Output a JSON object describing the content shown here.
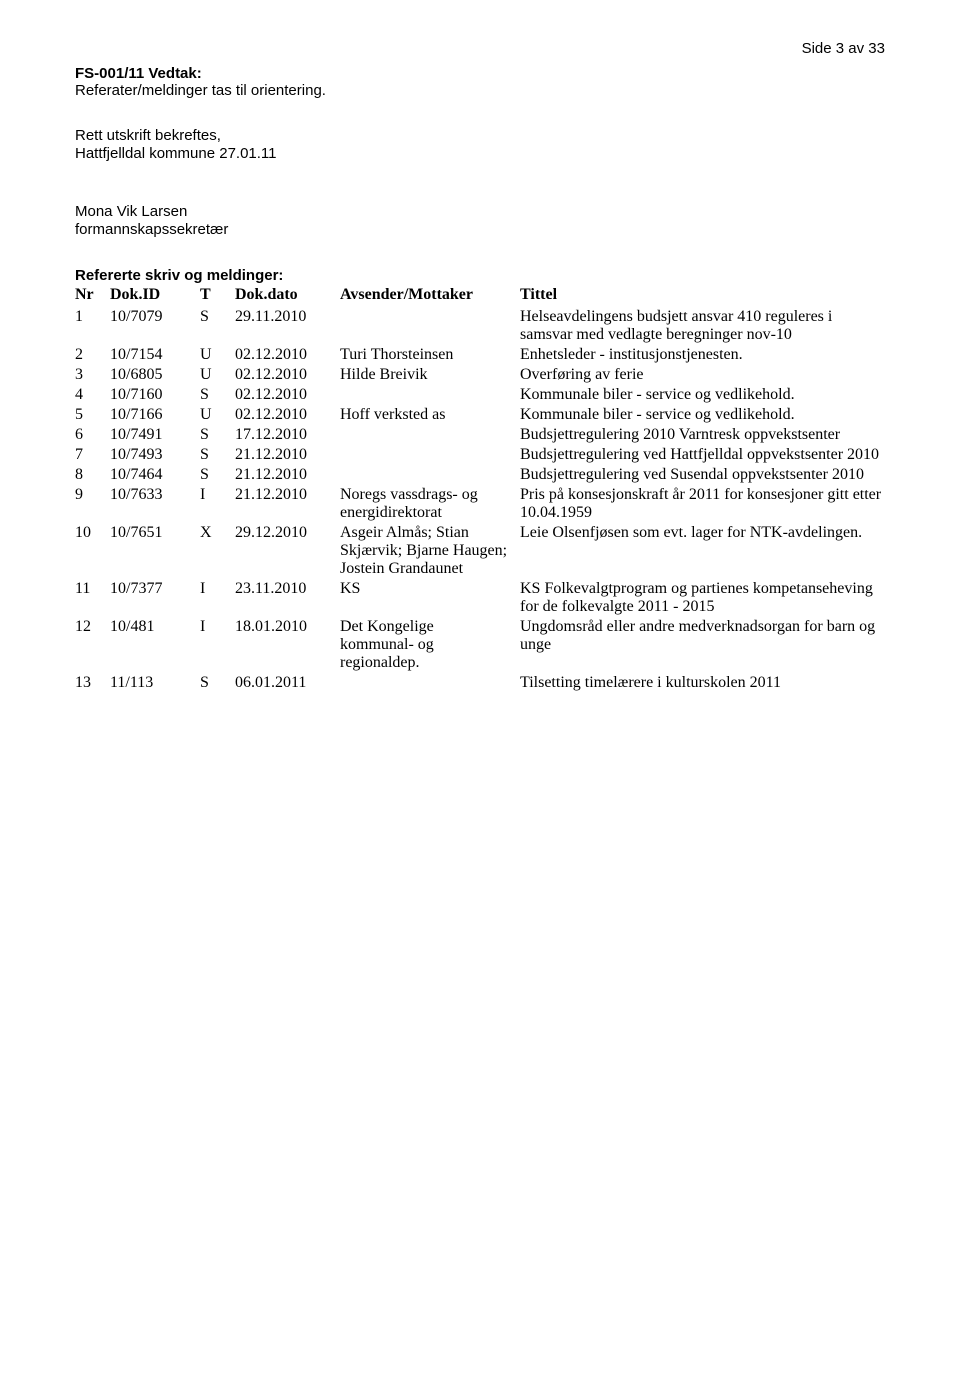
{
  "page_number": "Side 3 av 33",
  "vedtak": {
    "heading": "FS-001/11 Vedtak:",
    "text": "Referater/meldinger tas til orientering."
  },
  "utskrift": {
    "line1": "Rett utskrift bekreftes,",
    "line2": "Hattfjelldal kommune 27.01.11"
  },
  "signatur": {
    "name": "Mona Vik Larsen",
    "title": "formannskapssekretær"
  },
  "refererte_heading": "Refererte skriv og meldinger:",
  "table": {
    "headers": {
      "nr": "Nr",
      "id": "Dok.ID",
      "t": "T",
      "date": "Dok.dato",
      "sender": "Avsender/Mottaker",
      "title": "Tittel"
    },
    "rows": [
      {
        "nr": "1",
        "id": "10/7079",
        "t": "S",
        "date": "29.11.2010",
        "sender": "",
        "title": "Helseavdelingens budsjett ansvar 410 reguleres i samsvar med vedlagte beregninger nov-10"
      },
      {
        "nr": "2",
        "id": "10/7154",
        "t": "U",
        "date": "02.12.2010",
        "sender": "Turi Thorsteinsen",
        "title": "Enhetsleder - institusjonstjenesten."
      },
      {
        "nr": "3",
        "id": "10/6805",
        "t": "U",
        "date": "02.12.2010",
        "sender": "Hilde Breivik",
        "title": "Overføring av ferie"
      },
      {
        "nr": "4",
        "id": "10/7160",
        "t": "S",
        "date": "02.12.2010",
        "sender": "",
        "title": "Kommunale biler - service og vedlikehold."
      },
      {
        "nr": "5",
        "id": "10/7166",
        "t": "U",
        "date": "02.12.2010",
        "sender": "Hoff verksted as",
        "title": "Kommunale biler - service og vedlikehold."
      },
      {
        "nr": "6",
        "id": "10/7491",
        "t": "S",
        "date": "17.12.2010",
        "sender": "",
        "title": "Budsjettregulering 2010 Varntresk oppvekstsenter"
      },
      {
        "nr": "7",
        "id": "10/7493",
        "t": "S",
        "date": "21.12.2010",
        "sender": "",
        "title": "Budsjettregulering ved Hattfjelldal oppvekstsenter 2010"
      },
      {
        "nr": "8",
        "id": "10/7464",
        "t": "S",
        "date": "21.12.2010",
        "sender": "",
        "title": "Budsjettregulering ved Susendal oppvekstsenter 2010"
      },
      {
        "nr": "9",
        "id": "10/7633",
        "t": "I",
        "date": "21.12.2010",
        "sender": "Noregs vassdrags- og energidirektorat",
        "title": "Pris på konsesjonskraft år 2011 for konsesjoner gitt etter 10.04.1959"
      },
      {
        "nr": "10",
        "id": "10/7651",
        "t": "X",
        "date": "29.12.2010",
        "sender": "Asgeir Almås; Stian Skjærvik; Bjarne Haugen; Jostein Grandaunet",
        "title": "Leie Olsenfjøsen som evt. lager for NTK-avdelingen."
      },
      {
        "nr": "11",
        "id": "10/7377",
        "t": "I",
        "date": "23.11.2010",
        "sender": "KS",
        "title": "KS Folkevalgtprogram og partienes kompetanseheving for de folkevalgte 2011 - 2015"
      },
      {
        "nr": "12",
        "id": "10/481",
        "t": "I",
        "date": "18.01.2010",
        "sender": "Det Kongelige kommunal- og regionaldep.",
        "title": "Ungdomsråd eller andre medverknadsorgan for barn og unge"
      },
      {
        "nr": "13",
        "id": "11/113",
        "t": "S",
        "date": "06.01.2011",
        "sender": "",
        "title": "Tilsetting timelærere i kulturskolen 2011"
      }
    ]
  }
}
